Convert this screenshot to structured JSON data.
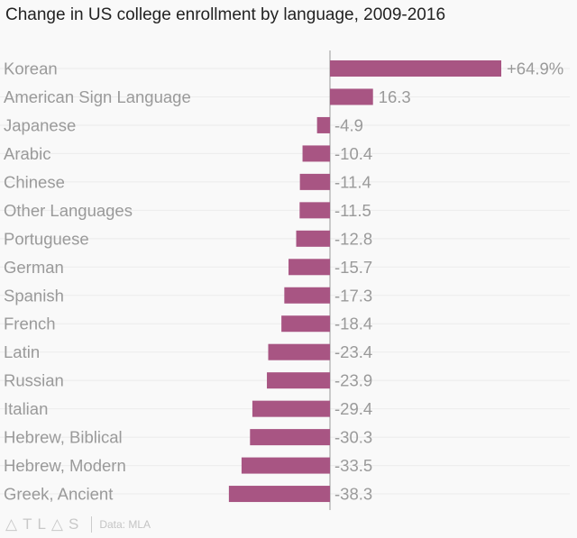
{
  "chart_data": {
    "type": "bar",
    "orientation": "horizontal",
    "title": "Change in US college enrollment by language, 2009-2016",
    "categories": [
      "Korean",
      "American Sign Language",
      "Japanese",
      "Arabic",
      "Chinese",
      "Other Languages",
      "Portuguese",
      "German",
      "Spanish",
      "French",
      "Latin",
      "Russian",
      "Italian",
      "Hebrew, Biblical",
      "Hebrew, Modern",
      "Greek, Ancient"
    ],
    "values": [
      64.9,
      16.3,
      -4.9,
      -10.4,
      -11.4,
      -11.5,
      -12.8,
      -15.7,
      -17.3,
      -18.4,
      -23.4,
      -23.9,
      -29.4,
      -30.3,
      -33.5,
      -38.3
    ],
    "data_labels": [
      "+64.9%",
      "16.3",
      "-4.9",
      "-10.4",
      "-11.4",
      "-11.5",
      "-12.8",
      "-15.7",
      "-17.3",
      "-18.4",
      "-23.4",
      "-23.9",
      "-29.4",
      "-30.3",
      "-33.5",
      "-38.3"
    ],
    "xlabel": "",
    "ylabel": "",
    "xlim": [
      -38.3,
      64.9
    ],
    "grid": true,
    "bar_color": "#a85583"
  },
  "footer": {
    "logo": "ATLAS",
    "source": "Data: MLA"
  }
}
